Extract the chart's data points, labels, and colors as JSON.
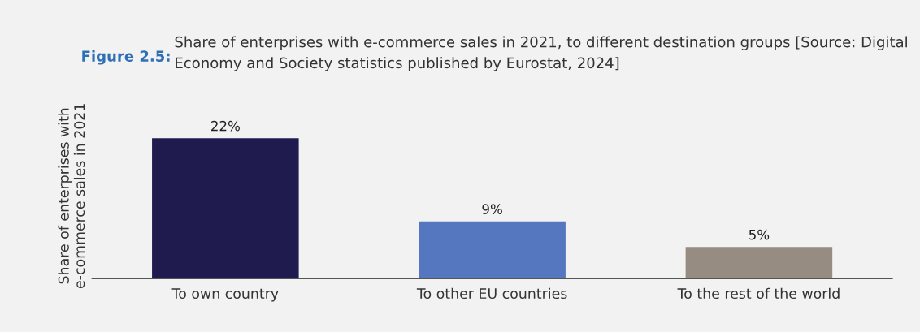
{
  "chart_data": {
    "type": "bar",
    "title": "Figure 2.5:",
    "subtitle": "Share of enterprises with e-commerce sales in 2021, to different destination groups [Source: Digital Economy and Society statistics published by Eurostat, 2024]",
    "ylabel": "Share of enterprises with\ne-commerce sales in 2021",
    "categories": [
      "To own country",
      "To other EU countries",
      "To the rest of the world"
    ],
    "values": [
      22,
      9,
      5
    ],
    "value_labels": [
      "22%",
      "9%",
      "5%"
    ],
    "colors": [
      "#201b4f",
      "#5577bf",
      "#978c82"
    ],
    "grid": false,
    "legend": false
  }
}
